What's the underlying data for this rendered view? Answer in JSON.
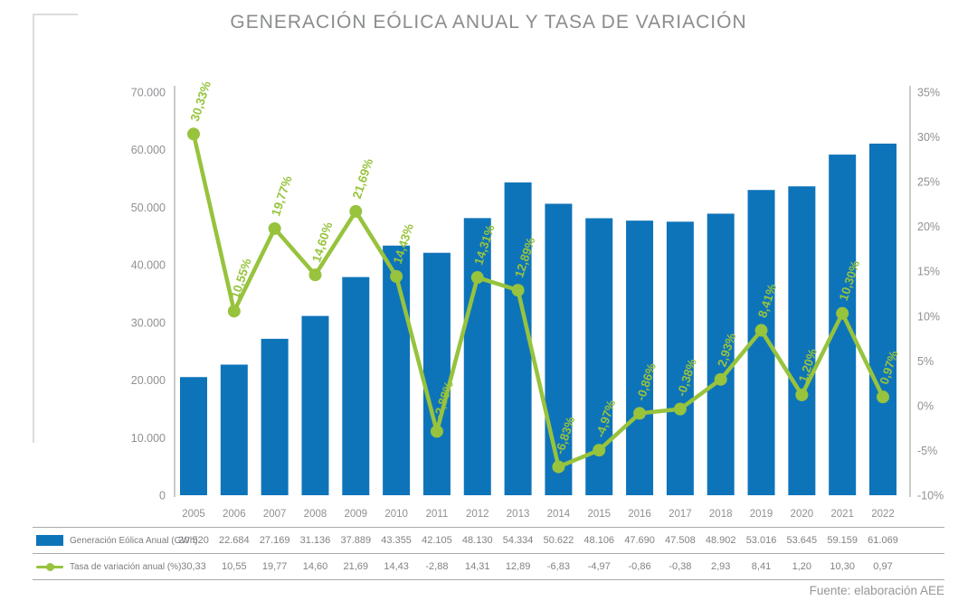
{
  "title": "GENERACIÓN EÓLICA ANUAL Y TASA DE VARIACIÓN",
  "footer": "Fuente: elaboración AEE",
  "colors": {
    "bar": "#0E74BA",
    "line": "#97C33D",
    "axis_line": "#C9CBCD",
    "tick_text": "#8E9093",
    "table_text": "#808285"
  },
  "chart_data": {
    "type": "bar",
    "subtype": "combo bar+line, dual axis",
    "title": "GENERACIÓN EÓLICA ANUAL Y TASA DE VARIACIÓN",
    "categories": [
      "2005",
      "2006",
      "2007",
      "2008",
      "2009",
      "2010",
      "2011",
      "2012",
      "2013",
      "2014",
      "2015",
      "2016",
      "2017",
      "2018",
      "2019",
      "2020",
      "2021",
      "2022"
    ],
    "series": [
      {
        "name": "Generación Eólica Anual (GWh)",
        "type": "bar",
        "axis": "left",
        "values": [
          20520,
          22684,
          27169,
          31136,
          37889,
          43355,
          42105,
          48130,
          54334,
          50622,
          48106,
          47690,
          47508,
          48902,
          53016,
          53645,
          59159,
          61069
        ]
      },
      {
        "name": "Tasa de variación anual (%)",
        "type": "line",
        "axis": "right",
        "values": [
          30.33,
          10.55,
          19.77,
          14.6,
          21.69,
          14.43,
          -2.88,
          14.31,
          12.89,
          -6.83,
          -4.97,
          -0.86,
          -0.38,
          2.93,
          8.41,
          1.2,
          10.3,
          0.97
        ],
        "point_labels": [
          "30,33%",
          "10,55%",
          "19,77%",
          "14,60%",
          "21,69%",
          "14,43%",
          "-2,88%",
          "14,31%",
          "12,89%",
          "-6,83%",
          "-4,97%",
          "-0,86%",
          "-0,38%",
          "2,93%",
          "8,41%",
          "1,20%",
          "10,30%",
          "0,97%"
        ]
      }
    ],
    "left_axis": {
      "ticks": [
        "0",
        "10.000",
        "20.000",
        "30.000",
        "40.000",
        "50.000",
        "60.000",
        "70.000"
      ],
      "range": [
        0,
        70000
      ]
    },
    "right_axis": {
      "ticks": [
        "-10%",
        "-5%",
        "0%",
        "5%",
        "10%",
        "15%",
        "20%",
        "25%",
        "30%",
        "35%"
      ],
      "range": [
        -10,
        35
      ]
    },
    "grid": false,
    "legend_position": "bottom table"
  },
  "table": {
    "rows": [
      {
        "label": "Generación Eólica Anual  (GWh)",
        "values": [
          "20.520",
          "22.684",
          "27.169",
          "31.136",
          "37.889",
          "43.355",
          "42.105",
          "48.130",
          "54.334",
          "50.622",
          "48.106",
          "47.690",
          "47.508",
          "48.902",
          "53.016",
          "53.645",
          "59.159",
          "61.069"
        ]
      },
      {
        "label": "Tasa de variación anual (%)",
        "values": [
          "30,33",
          "10,55",
          "19,77",
          "14,60",
          "21,69",
          "14,43",
          "-2,88",
          "14,31",
          "12,89",
          "-6,83",
          "-4,97",
          "-0,86",
          "-0,38",
          "2,93",
          "8,41",
          "1,20",
          "10,30",
          "0,97"
        ]
      }
    ]
  }
}
